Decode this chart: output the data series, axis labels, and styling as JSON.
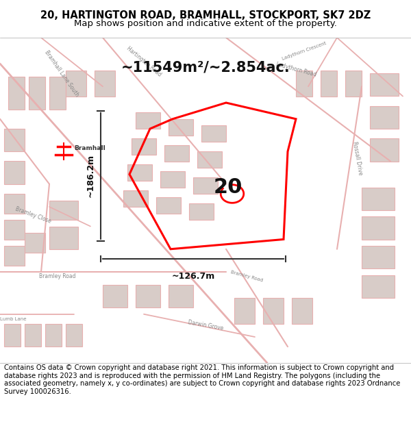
{
  "title_line1": "20, HARTINGTON ROAD, BRAMHALL, STOCKPORT, SK7 2DZ",
  "title_line2": "Map shows position and indicative extent of the property.",
  "area_text": "~11549m²/~2.854ac.",
  "number_label": "20",
  "dim_vertical": "~186.2m",
  "dim_horizontal": "~126.7m",
  "station_label": "Bramhall",
  "footer_text": "Contains OS data © Crown copyright and database right 2021. This information is subject to Crown copyright and database rights 2023 and is reproduced with the permission of HM Land Registry. The polygons (including the associated geometry, namely x, y co-ordinates) are subject to Crown copyright and database rights 2023 Ordnance Survey 100026316.",
  "bg_color": "#f5f0ee",
  "map_bg": "#f5f0f0",
  "road_color": "#e8b0b0",
  "building_color": "#d8ccc8",
  "property_color": "#ff0000",
  "dim_color": "#333333",
  "title_bg": "#ffffff",
  "footer_bg": "#ffffff",
  "fig_width": 6.0,
  "fig_height": 6.25
}
